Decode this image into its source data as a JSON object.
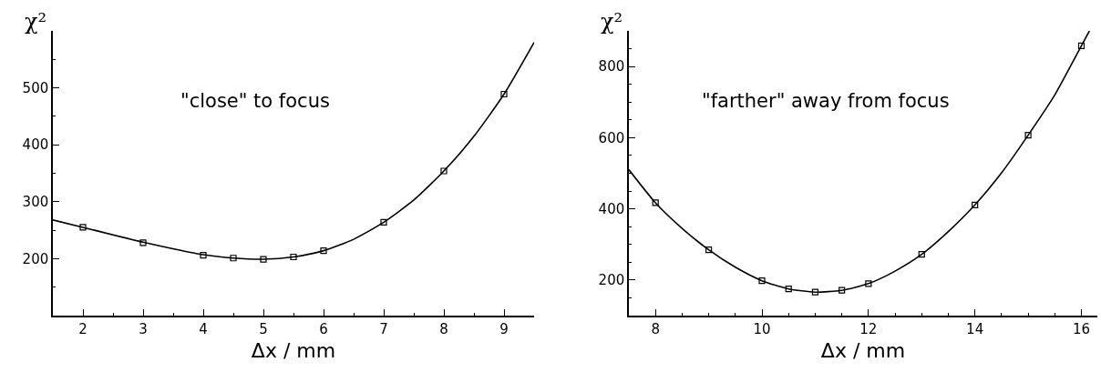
{
  "chart_data": [
    {
      "type": "scatter",
      "xlabel": "Δx / mm",
      "ylabel": "χ²",
      "annotations": [
        "\"close\" to focus"
      ],
      "xlim": [
        1.5,
        9.5
      ],
      "xticks": [
        2,
        3,
        4,
        5,
        6,
        7,
        8,
        9
      ],
      "ylim": [
        100,
        600
      ],
      "yticks": [
        {
          "value": 100,
          "label": null
        },
        200,
        300,
        400,
        500
      ],
      "grid": false,
      "marker": "square",
      "series": [
        {
          "color": "#000000",
          "x": [
            2,
            3,
            4,
            4.5,
            5,
            5.5,
            6,
            7,
            8,
            9
          ],
          "values": [
            255,
            228,
            206,
            201,
            199,
            203,
            214,
            264,
            354,
            489
          ]
        },
        {
          "type": "line",
          "marker": "none",
          "color": "#000000",
          "line_style": "solid",
          "x": [
            1.5,
            2,
            3,
            4,
            4.5,
            5,
            5.5,
            6,
            6.5,
            7,
            7.5,
            8,
            8.5,
            9,
            9.5
          ],
          "values": [
            268,
            255,
            229,
            207,
            201,
            199,
            203,
            214,
            234,
            264,
            303,
            354,
            415,
            489,
            580
          ]
        }
      ]
    },
    {
      "type": "scatter",
      "xlabel": "Δx / mm",
      "ylabel": "χ²",
      "annotations": [
        "\"farther\" away from focus"
      ],
      "xlim": [
        7.5,
        16.3
      ],
      "xticks": [
        8,
        10,
        12,
        14,
        16
      ],
      "ylim": [
        100,
        900
      ],
      "yticks": [
        {
          "value": 100,
          "label": null
        },
        200,
        400,
        600,
        800
      ],
      "grid": false,
      "marker": "square",
      "series": [
        {
          "color": "#000000",
          "x": [
            8,
            9,
            10,
            10.5,
            11,
            11.5,
            12,
            13,
            14,
            15,
            16
          ],
          "values": [
            417,
            285,
            198,
            175,
            166,
            171,
            190,
            272,
            411,
            607,
            858
          ]
        },
        {
          "type": "line",
          "marker": "none",
          "color": "#000000",
          "line_style": "solid",
          "x": [
            7.5,
            8,
            8.5,
            9,
            9.5,
            10,
            10.5,
            11,
            11.5,
            12,
            12.5,
            13,
            13.5,
            14,
            14.5,
            15,
            15.5,
            16,
            16.15
          ],
          "values": [
            510,
            417,
            345,
            285,
            236,
            198,
            175,
            166,
            171,
            190,
            225,
            272,
            336,
            411,
            501,
            607,
            720,
            858,
            900
          ]
        }
      ]
    }
  ]
}
